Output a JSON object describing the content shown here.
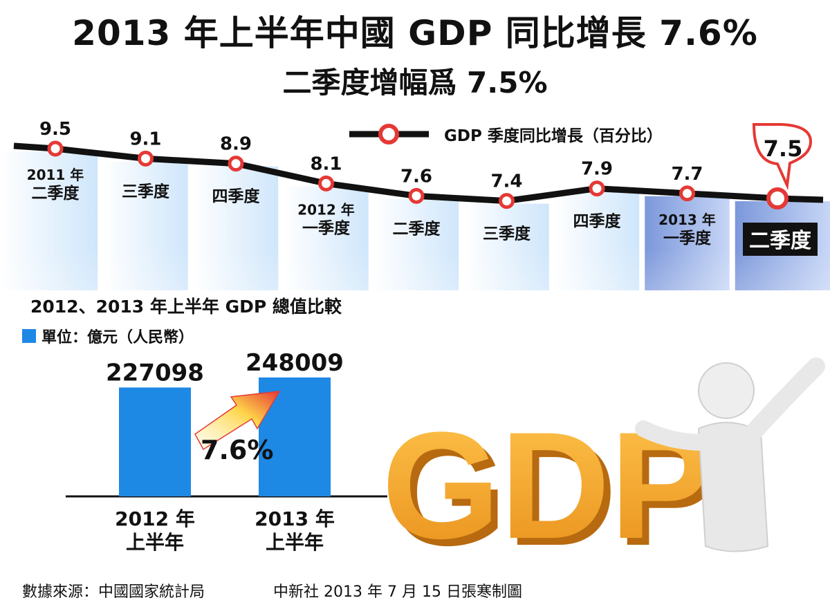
{
  "title": "2013 年上半年中國 GDP 同比增長 7.6%",
  "subtitle": "二季度增幅爲 7.5%",
  "colors": {
    "panel_light": "#dcefff",
    "panel_dark": "#8aa6e0",
    "bar": "#1e88e5",
    "line": "#111111",
    "marker": "#e53935",
    "gdp_orange": "#f5a623"
  },
  "chart_data": [
    {
      "type": "line",
      "series": [
        {
          "name": "GDP 季度同比增長（百分比）",
          "values": [
            9.5,
            9.1,
            8.9,
            8.1,
            7.6,
            7.4,
            7.9,
            7.7,
            7.5
          ]
        }
      ],
      "categories": [
        [
          "2011 年",
          "二季度"
        ],
        [
          "三季度"
        ],
        [
          "四季度"
        ],
        [
          "2012 年",
          "一季度"
        ],
        [
          "二季度"
        ],
        [
          "三季度"
        ],
        [
          "四季度"
        ],
        [
          "2013 年",
          "一季度"
        ],
        [
          "二季度"
        ]
      ],
      "value_labels": [
        "9.5",
        "9.1",
        "8.9",
        "8.1",
        "7.6",
        "7.4",
        "7.9",
        "7.7",
        "7.5"
      ],
      "highlight_index": 8,
      "legend": "top-right"
    },
    {
      "type": "bar",
      "title": "2012、2013 年上半年 GDP 總值比較",
      "unit": "單位：億元（人民幣）",
      "categories": [
        [
          "2012 年",
          "上半年"
        ],
        [
          "2013 年",
          "上半年"
        ]
      ],
      "values": [
        227098,
        248009
      ],
      "value_labels": [
        "227098",
        "248009"
      ],
      "growth_label": "7.6%"
    }
  ],
  "gdp_text": "GDP",
  "footer": {
    "source": "數據來源：中國國家統計局",
    "credit": "中新社 2013 年 7 月 15 日張寒制圖"
  }
}
